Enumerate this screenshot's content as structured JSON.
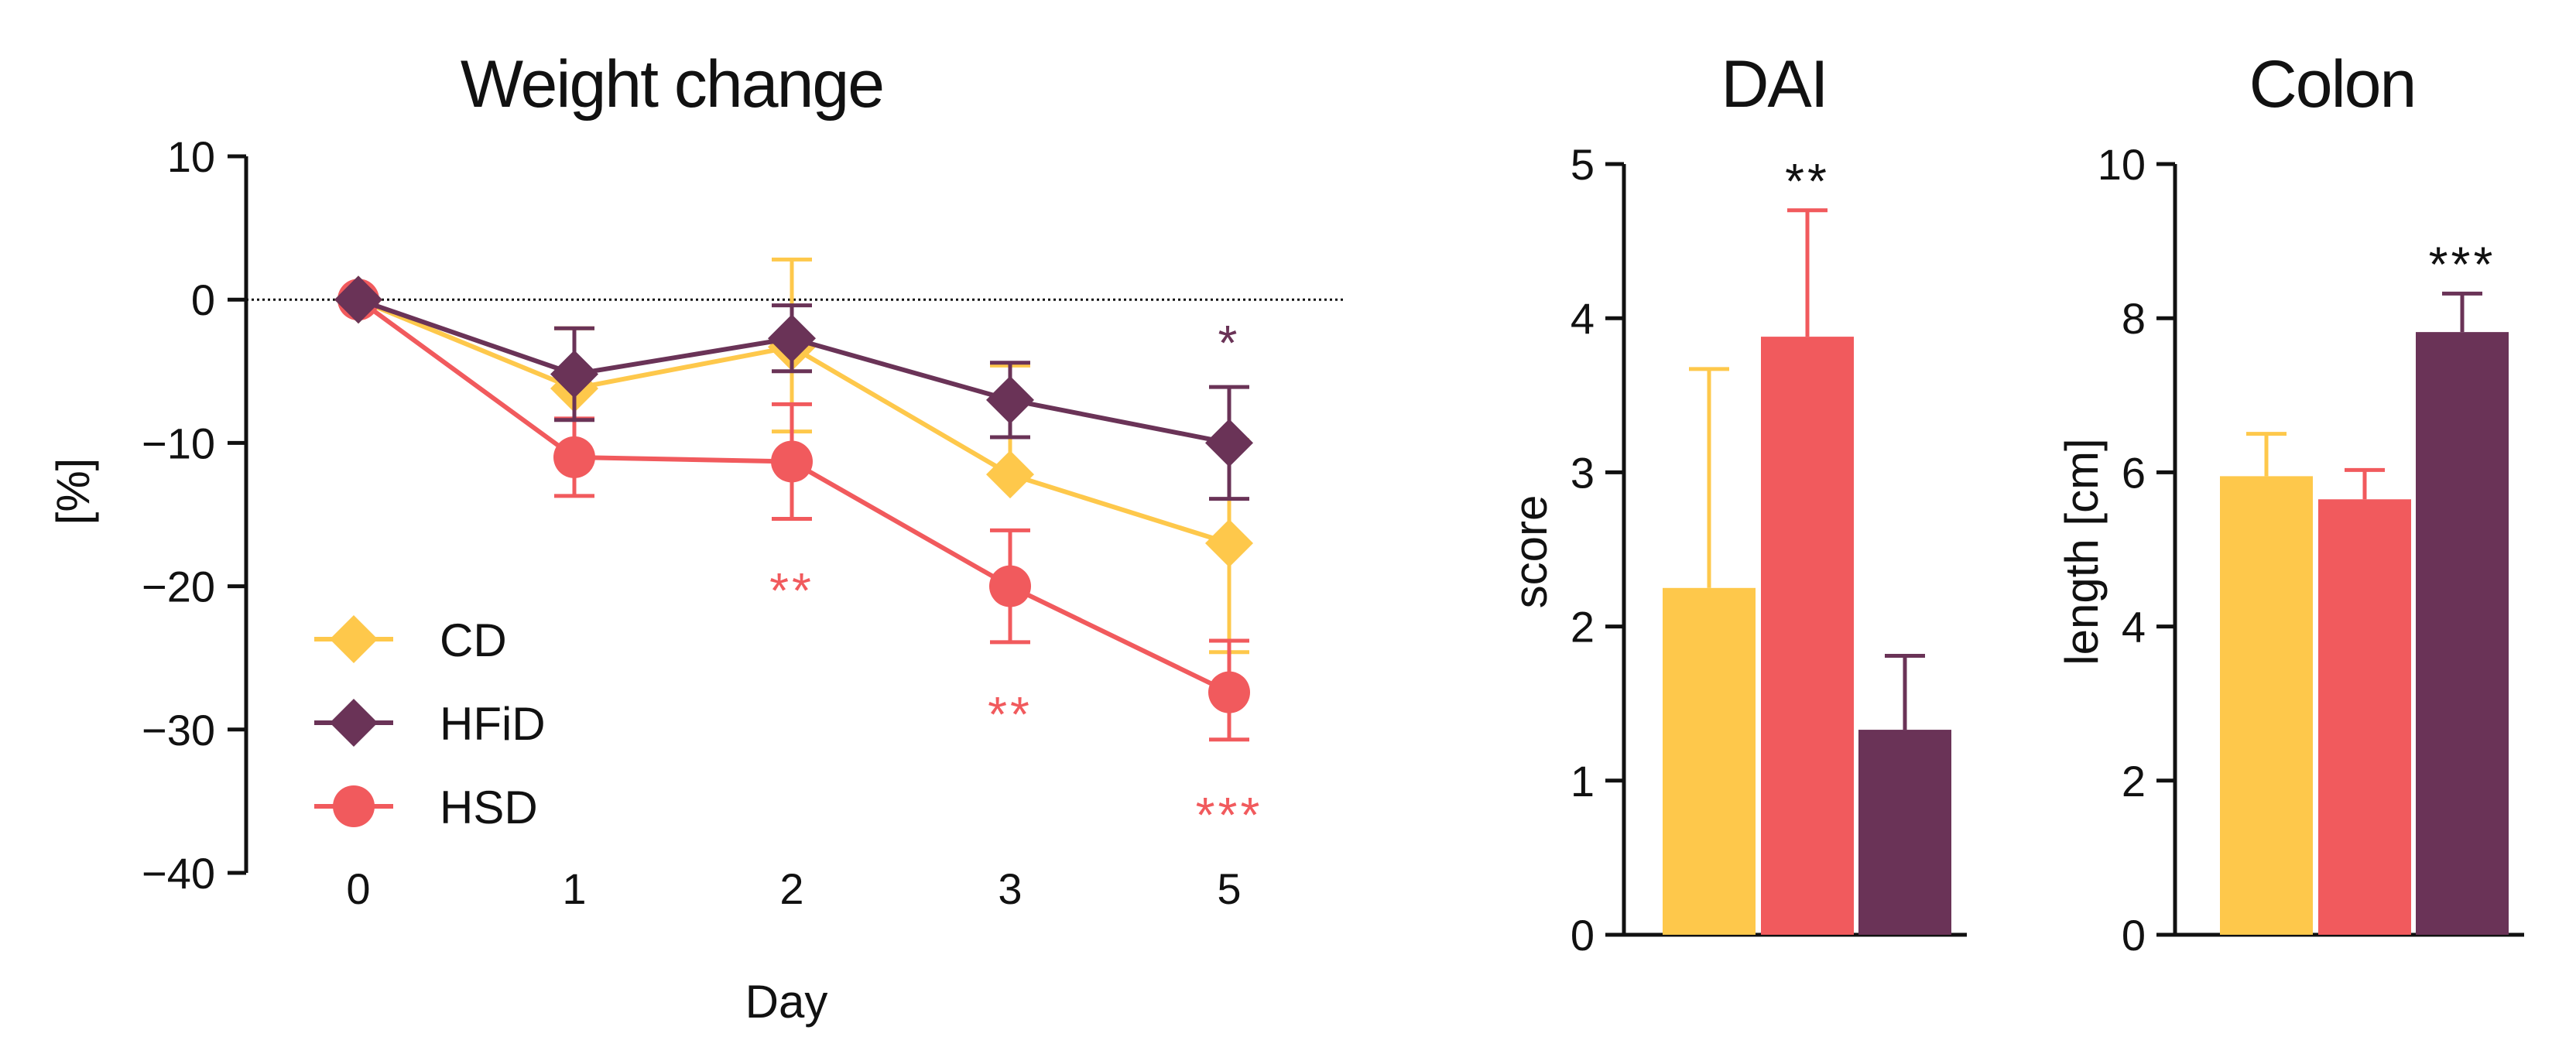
{
  "colors": {
    "CD": "#FEC84B",
    "HFiD": "#6A3357",
    "HSD": "#F15A5D",
    "axis": "#111111"
  },
  "chart_data": [
    {
      "type": "line",
      "title": "Weight change",
      "xlabel": "Day",
      "ylabel": "[%]",
      "x": [
        "0",
        "1",
        "2",
        "3",
        "5"
      ],
      "ylim": [
        -40,
        10
      ],
      "yticks": [
        "10",
        "0",
        "−10",
        "−20",
        "−30",
        "−40"
      ],
      "reference_line": 0,
      "legend": {
        "placement": "bottom-left",
        "entries": [
          "CD",
          "HFiD",
          "HSD"
        ]
      },
      "series": [
        {
          "name": "CD",
          "marker": "diamond",
          "values": [
            0,
            -6.2,
            -3.3,
            -12.2,
            -17.0
          ],
          "err_plus": [
            0,
            4.2,
            6.1,
            7.6,
            7.2
          ],
          "err_minus": [
            0,
            0,
            5.9,
            0,
            7.6
          ]
        },
        {
          "name": "HFiD",
          "marker": "diamond",
          "values": [
            0,
            -5.2,
            -2.7,
            -7.0,
            -10.0
          ],
          "err_plus": [
            0,
            3.2,
            2.3,
            2.6,
            3.9
          ],
          "err_minus": [
            0,
            3.2,
            2.3,
            2.6,
            3.9
          ]
        },
        {
          "name": "HSD",
          "marker": "circle",
          "values": [
            0,
            -11.0,
            -11.3,
            -20.0,
            -27.4
          ],
          "err_plus": [
            0,
            2.7,
            4.0,
            3.9,
            3.6
          ],
          "err_minus": [
            0,
            2.7,
            4.0,
            3.9,
            3.3
          ]
        }
      ],
      "annotations": [
        {
          "text": "*",
          "x": "5",
          "series": "HFiD"
        },
        {
          "text": "**",
          "x": "2",
          "series": "HSD"
        },
        {
          "text": "**",
          "x": "3",
          "series": "HSD"
        },
        {
          "text": "***",
          "x": "5",
          "series": "HSD"
        }
      ]
    },
    {
      "type": "bar",
      "title": "DAI",
      "ylabel": "score",
      "ylim": [
        0,
        5
      ],
      "yticks": [
        "0",
        "1",
        "2",
        "3",
        "4",
        "5"
      ],
      "categories": [
        "CD",
        "HSD",
        "HFiD"
      ],
      "values": [
        2.25,
        3.88,
        1.33
      ],
      "err_plus": [
        1.42,
        0.82,
        0.48
      ],
      "annotations": [
        {
          "text": "**",
          "category": "HSD"
        }
      ]
    },
    {
      "type": "bar",
      "title": "Colon",
      "ylabel": "length [cm]",
      "ylim": [
        0,
        10
      ],
      "yticks": [
        "0",
        "2",
        "4",
        "6",
        "8",
        "10"
      ],
      "categories": [
        "CD",
        "HSD",
        "HFiD"
      ],
      "values": [
        5.95,
        5.65,
        7.82
      ],
      "err_plus": [
        0.55,
        0.38,
        0.5
      ],
      "annotations": [
        {
          "text": "***",
          "category": "HFiD"
        }
      ]
    }
  ]
}
